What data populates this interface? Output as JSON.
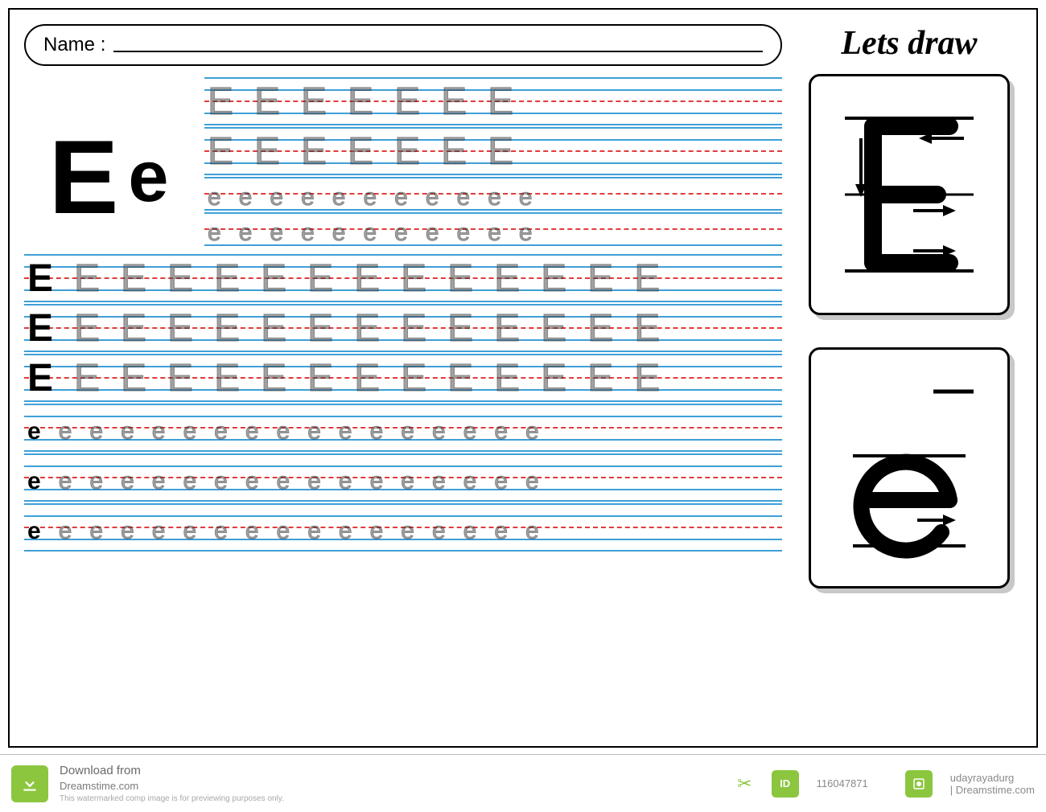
{
  "page": {
    "name_label": "Name :",
    "lets_draw": "Lets draw"
  },
  "sample": {
    "upper": "E",
    "lower": "e"
  },
  "colors": {
    "rule_blue": "#3f9fd8",
    "rule_red_dashed": "#e23b3b",
    "border_black": "#000000",
    "card_shadow": "#c8c8c8",
    "accent_green": "#8cc63f",
    "text_grey": "#7a7a7a",
    "background": "#ffffff"
  },
  "tracing": {
    "top_block_rows": [
      {
        "type": "upper",
        "letter": "E",
        "count": 7,
        "lead_solid": false
      },
      {
        "type": "upper",
        "letter": "E",
        "count": 7,
        "lead_solid": false
      },
      {
        "type": "lower",
        "letter": "e",
        "count": 11,
        "lead_solid": false,
        "short": true
      },
      {
        "type": "lower",
        "letter": "e",
        "count": 11,
        "lead_solid": false,
        "short": true
      }
    ],
    "full_rows": [
      {
        "type": "upper",
        "letter": "E",
        "count": 14,
        "lead_solid": true
      },
      {
        "type": "upper",
        "letter": "E",
        "count": 14,
        "lead_solid": true
      },
      {
        "type": "upper",
        "letter": "E",
        "count": 14,
        "lead_solid": true
      },
      {
        "type": "lower",
        "letter": "e",
        "count": 17,
        "lead_solid": true
      },
      {
        "type": "lower",
        "letter": "e",
        "count": 17,
        "lead_solid": true
      },
      {
        "type": "lower",
        "letter": "e",
        "count": 17,
        "lead_solid": true
      }
    ],
    "upper_fontsize": 48,
    "lower_fontsize": 30,
    "row_height_full": 58,
    "row_height_short": 40
  },
  "guide_cards": {
    "upper": {
      "letter": "E",
      "strokes": [
        "down",
        "right-top",
        "right-mid",
        "right-bot"
      ]
    },
    "lower": {
      "letter": "e",
      "strokes": [
        "across-then-around"
      ]
    }
  },
  "footer": {
    "download_line1": "Download from",
    "download_line2": "Dreamstime.com",
    "disclaimer": "This watermarked comp image is for previewing purposes only.",
    "image_id": "116047871",
    "author_line1": "udayrayadurg",
    "author_line2": "| Dreamstime.com"
  }
}
